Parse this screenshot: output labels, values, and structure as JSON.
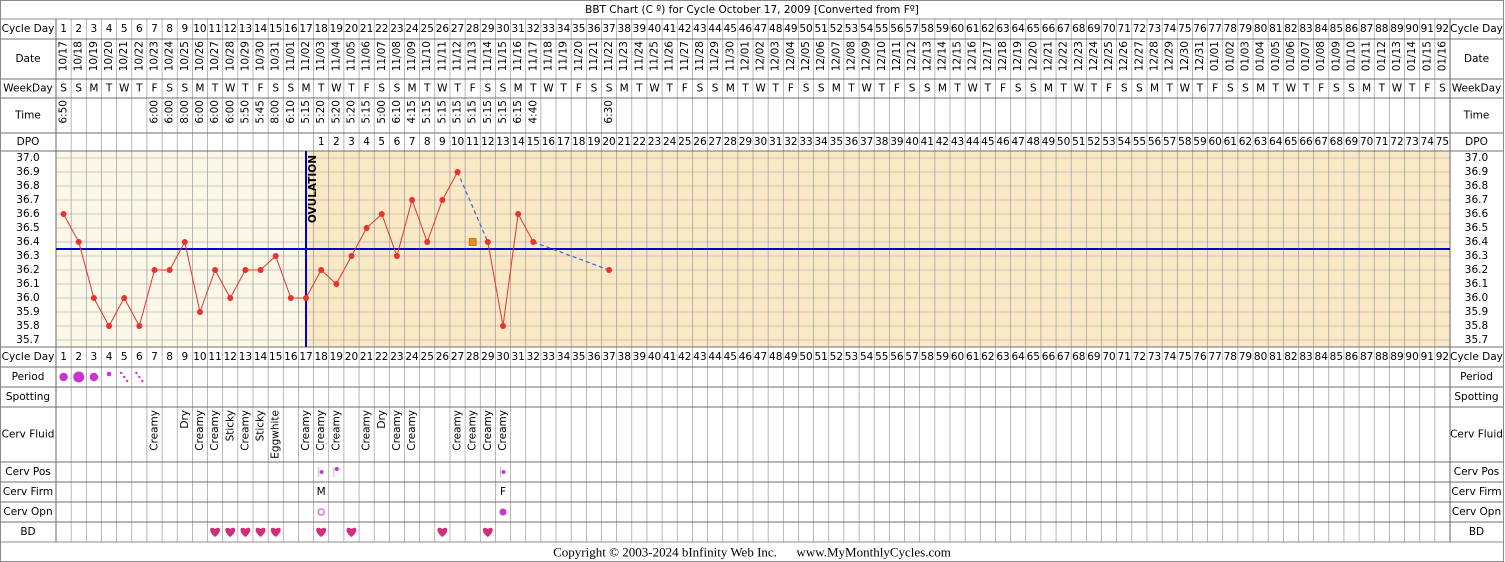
{
  "chart_data": {
    "type": "line",
    "title": "BBT Chart (C º) for Cycle October 17, 2009  [Converted from Fº]",
    "x": [
      1,
      2,
      3,
      4,
      5,
      6,
      7,
      8,
      9,
      10,
      11,
      12,
      13,
      14,
      15,
      16,
      17,
      18,
      19,
      20,
      21,
      22,
      23,
      24,
      25,
      26,
      27,
      28,
      29,
      30,
      31,
      32,
      33,
      34,
      35,
      36,
      37,
      38,
      39,
      40,
      41,
      42,
      43,
      44,
      45,
      46,
      47,
      48,
      49,
      50,
      51,
      52,
      53,
      54,
      55,
      56,
      57,
      58,
      59,
      60,
      61,
      62,
      63,
      64,
      65,
      66,
      67,
      68,
      69,
      70,
      71,
      72,
      73,
      74,
      75,
      76,
      77,
      78,
      79,
      80,
      81,
      82,
      83,
      84,
      85,
      86,
      87,
      88,
      89,
      90,
      91,
      92
    ],
    "xlim": [
      0.5,
      92.5
    ],
    "dates": [
      "10/17",
      "10/18",
      "10/19",
      "10/20",
      "10/21",
      "10/22",
      "10/23",
      "10/24",
      "10/25",
      "10/26",
      "10/27",
      "10/28",
      "10/29",
      "10/30",
      "10/31",
      "11/01",
      "11/02",
      "11/03",
      "11/04",
      "11/05",
      "11/06",
      "11/07",
      "11/08",
      "11/09",
      "11/10",
      "11/11",
      "11/12",
      "11/13",
      "11/14",
      "11/15",
      "11/16",
      "11/17",
      "11/18",
      "11/19",
      "11/20",
      "11/21",
      "11/22",
      "11/23",
      "11/24",
      "11/25",
      "11/26",
      "11/27",
      "11/28",
      "11/29",
      "11/30",
      "12/01",
      "12/02",
      "12/03",
      "12/04",
      "12/05",
      "12/06",
      "12/07",
      "12/08",
      "12/09",
      "12/10",
      "12/11",
      "12/12",
      "12/13",
      "12/14",
      "12/15",
      "12/16",
      "12/17",
      "12/18",
      "12/19",
      "12/20",
      "12/21",
      "12/22",
      "12/23",
      "12/24",
      "12/25",
      "12/26",
      "12/27",
      "12/28",
      "12/29",
      "12/30",
      "12/31",
      "01/01",
      "01/02",
      "01/03",
      "01/04",
      "01/05",
      "01/06",
      "01/07",
      "01/08",
      "01/09",
      "01/10",
      "01/11",
      "01/12",
      "01/13",
      "01/14",
      "01/15",
      "01/16"
    ],
    "weekdays": [
      "S",
      "S",
      "M",
      "T",
      "W",
      "T",
      "F",
      "S",
      "S",
      "M",
      "T",
      "W",
      "T",
      "F",
      "S",
      "S",
      "M",
      "T",
      "W",
      "T",
      "F",
      "S",
      "S",
      "M",
      "T",
      "W",
      "T",
      "F",
      "S",
      "S",
      "M",
      "T",
      "W",
      "T",
      "F",
      "S",
      "S",
      "M",
      "T",
      "W",
      "T",
      "F",
      "S",
      "S",
      "M",
      "T",
      "W",
      "T",
      "F",
      "S",
      "S",
      "M",
      "T",
      "W",
      "T",
      "F",
      "S",
      "S",
      "M",
      "T",
      "W",
      "T",
      "F",
      "S",
      "S",
      "M",
      "T",
      "W",
      "T",
      "F",
      "S",
      "S",
      "M",
      "T",
      "W",
      "T",
      "F",
      "S",
      "S",
      "M",
      "T",
      "W",
      "T",
      "F",
      "S",
      "S",
      "M",
      "T",
      "W",
      "T",
      "F",
      "S"
    ],
    "times": [
      "6:50",
      null,
      null,
      null,
      null,
      null,
      "6:00",
      "6:00",
      "8:00",
      "6:00",
      "6:00",
      "6:00",
      "5:50",
      "5:45",
      "8:00",
      "6:10",
      "5:15",
      "5:20",
      "5:20",
      "5:20",
      "5:15",
      "5:00",
      "6:10",
      "4:15",
      "5:15",
      "5:15",
      "5:15",
      "5:15",
      "5:15",
      "5:15",
      "6:15",
      "4:40",
      null,
      null,
      null,
      null,
      "6:30",
      null,
      null,
      null,
      null,
      null,
      null,
      null,
      null,
      null,
      null,
      null,
      null,
      null,
      null,
      null,
      null,
      null,
      null,
      null,
      null,
      null,
      null,
      null,
      null,
      null,
      null,
      null,
      null,
      null,
      null,
      null,
      null,
      null,
      null,
      null,
      null,
      null,
      null,
      null,
      null,
      null,
      null,
      null,
      null,
      null,
      null,
      null,
      null,
      null,
      null,
      null,
      null,
      null,
      null,
      null
    ],
    "dpo": [
      null,
      null,
      null,
      null,
      null,
      null,
      null,
      null,
      null,
      null,
      null,
      null,
      null,
      null,
      null,
      null,
      null,
      1,
      2,
      3,
      4,
      5,
      6,
      7,
      8,
      9,
      10,
      11,
      12,
      13,
      14,
      15,
      16,
      17,
      18,
      19,
      20,
      21,
      22,
      23,
      24,
      25,
      26,
      27,
      28,
      29,
      30,
      31,
      32,
      33,
      34,
      35,
      36,
      37,
      38,
      39,
      40,
      41,
      42,
      43,
      44,
      45,
      46,
      47,
      48,
      49,
      50,
      51,
      52,
      53,
      54,
      55,
      56,
      57,
      58,
      59,
      60,
      61,
      62,
      63,
      64,
      65,
      66,
      67,
      68,
      69,
      70,
      71,
      72,
      73,
      74,
      75
    ],
    "values": [
      36.6,
      36.4,
      36.0,
      35.8,
      36.0,
      35.8,
      36.2,
      36.2,
      36.4,
      35.9,
      36.2,
      36.0,
      36.2,
      36.2,
      36.3,
      36.0,
      36.0,
      36.2,
      36.1,
      36.3,
      36.5,
      36.6,
      36.3,
      36.7,
      36.4,
      36.7,
      36.9,
      36.4,
      36.4,
      35.8,
      36.6,
      36.4,
      null,
      null,
      null,
      null,
      36.2,
      null,
      null,
      null,
      null,
      null,
      null,
      null,
      null,
      null,
      null,
      null,
      null,
      null,
      null,
      null,
      null,
      null,
      null,
      null,
      null,
      null,
      null,
      null,
      null,
      null,
      null,
      null,
      null,
      null,
      null,
      null,
      null,
      null,
      null,
      null,
      null,
      null,
      null,
      null,
      null,
      null,
      null,
      null,
      null,
      null,
      null,
      null,
      null,
      null,
      null,
      null,
      null,
      null,
      null,
      null
    ],
    "color": "#e8322e",
    "gap_color": "#4060dd",
    "excluded_days": [
      28
    ],
    "excluded_color": "#f08a1c",
    "ylim": [
      35.65,
      37.05
    ],
    "yticks": [
      {
        "value": 37.0,
        "label": "37.0"
      },
      36.9,
      36.8,
      36.7,
      36.6,
      36.5,
      36.4,
      36.3,
      36.2,
      36.1,
      {
        "value": 36.0,
        "label": "36.0"
      },
      35.9,
      35.8,
      35.7
    ],
    "grid": true,
    "coverline": 36.35,
    "coverline_color": "#0000cc",
    "ovulation_day": 17,
    "ovulation_label": "OVULATION",
    "row_labels": {
      "cycle_day": "Cycle Day",
      "date": "Date",
      "weekday": "WeekDay",
      "time": "Time",
      "dpo": "DPO",
      "period": "Period",
      "spotting": "Spotting",
      "cerv_fluid": "Cerv Fluid",
      "cerv_pos": "Cerv Pos",
      "cerv_firm": "Cerv Firm",
      "cerv_opn": "Cerv Opn",
      "bd": "BD"
    },
    "period": [
      {
        "day": 1,
        "flow": "medium"
      },
      {
        "day": 2,
        "flow": "heavy"
      },
      {
        "day": 3,
        "flow": "medium"
      },
      {
        "day": 4,
        "flow": "light"
      },
      {
        "day": 5,
        "flow": "spotting"
      },
      {
        "day": 6,
        "flow": "spotting"
      }
    ],
    "cerv_fluid": [
      {
        "day": 7,
        "label": "Creamy"
      },
      {
        "day": 9,
        "label": "Dry"
      },
      {
        "day": 10,
        "label": "Creamy"
      },
      {
        "day": 11,
        "label": "Creamy"
      },
      {
        "day": 12,
        "label": "Sticky"
      },
      {
        "day": 13,
        "label": "Creamy"
      },
      {
        "day": 14,
        "label": "Sticky"
      },
      {
        "day": 15,
        "label": "Eggwhite"
      },
      {
        "day": 17,
        "label": "Creamy"
      },
      {
        "day": 18,
        "label": "Creamy"
      },
      {
        "day": 19,
        "label": "Creamy"
      },
      {
        "day": 21,
        "label": "Creamy"
      },
      {
        "day": 22,
        "label": "Dry"
      },
      {
        "day": 23,
        "label": "Creamy"
      },
      {
        "day": 24,
        "label": "Creamy"
      },
      {
        "day": 27,
        "label": "Creamy"
      },
      {
        "day": 28,
        "label": "Creamy"
      },
      {
        "day": 29,
        "label": "Creamy"
      },
      {
        "day": 30,
        "label": "Creamy"
      }
    ],
    "cerv_pos_days": [
      18,
      19,
      30
    ],
    "cerv_firm": [
      {
        "day": 18,
        "label": "M"
      },
      {
        "day": 30,
        "label": "F"
      }
    ],
    "cerv_opn": [
      {
        "day": 18,
        "open": true
      },
      {
        "day": 30,
        "open": false
      }
    ],
    "bd_days": [
      11,
      12,
      13,
      14,
      15,
      18,
      20,
      26,
      29
    ],
    "mark_color": "#cc33cc"
  },
  "footer": "Copyright © 2003-2024 bInfinity Web Inc.      www.MyMonthlyCycles.com"
}
